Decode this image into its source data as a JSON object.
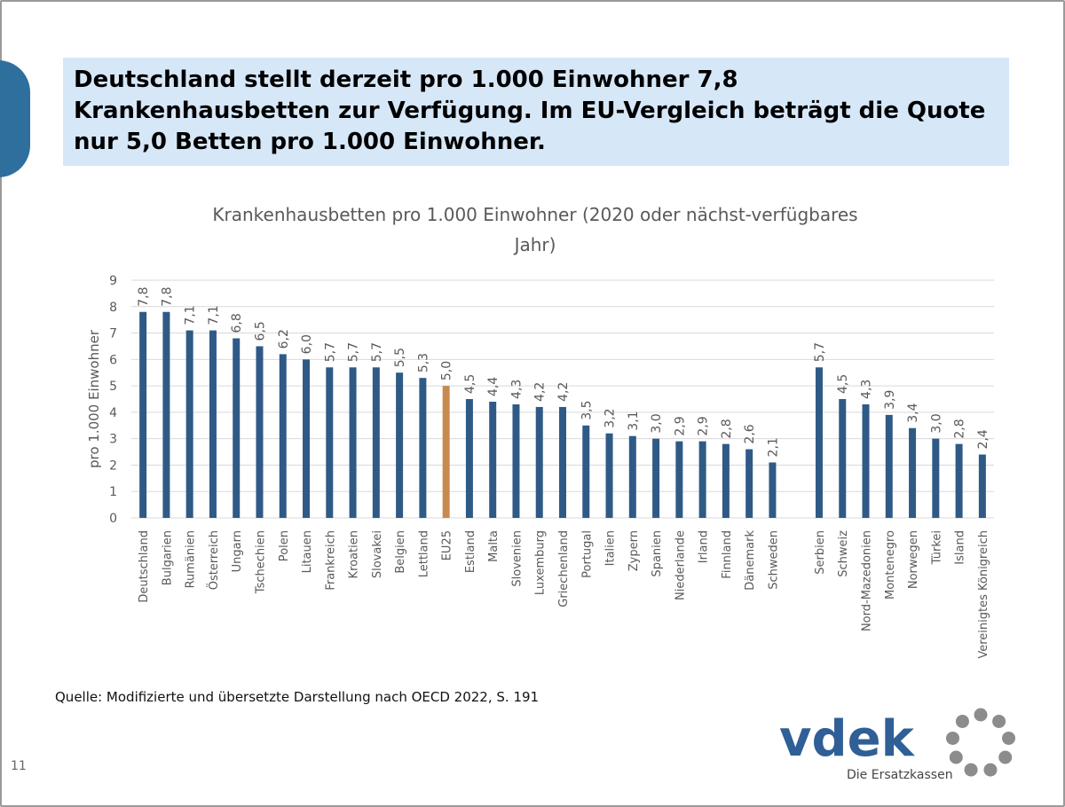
{
  "headline": {
    "lines": [
      "Deutschland stellt derzeit pro 1.000 Einwohner 7,8",
      "Krankenhausbetten zur Verfügung. Im EU-Vergleich beträgt die Quote",
      "nur 5,0 Betten pro 1.000 Einwohner."
    ]
  },
  "chart_data": {
    "type": "bar",
    "title": "Krankenhausbetten pro 1.000 Einwohner (2020 oder nächst-verfügbares Jahr)",
    "title_lines": [
      "Krankenhausbetten pro 1.000 Einwohner (2020 oder nächst-verfügbares",
      "Jahr)"
    ],
    "ylabel": "pro 1.000 Einwohner",
    "xlabel": "",
    "ylim": [
      0,
      9
    ],
    "yticks": [
      0,
      1,
      2,
      3,
      4,
      5,
      6,
      7,
      8,
      9
    ],
    "grid": true,
    "categories": [
      "Deutschland",
      "Bulgarien",
      "Rumänien",
      "Österreich",
      "Ungarn",
      "Tschechien",
      "Polen",
      "Litauen",
      "Frankreich",
      "Kroatien",
      "Slovakei",
      "Belgien",
      "Lettland",
      "EU25",
      "Estland",
      "Malta",
      "Slovenien",
      "Luxemburg",
      "Griechenland",
      "Portugal",
      "Italien",
      "Zypern",
      "Spanien",
      "Niederlande",
      "Irland",
      "Finnland",
      "Dänemark",
      "Schweden",
      "",
      "Serbien",
      "Schweiz",
      "Nord-Mazedonien",
      "Montenegro",
      "Norwegen",
      "Türkei",
      "Island",
      "Vereinigtes Königreich"
    ],
    "values": [
      7.8,
      7.8,
      7.1,
      7.1,
      6.8,
      6.5,
      6.2,
      6.0,
      5.7,
      5.7,
      5.7,
      5.5,
      5.3,
      5.0,
      4.5,
      4.4,
      4.3,
      4.2,
      4.2,
      3.5,
      3.2,
      3.1,
      3.0,
      2.9,
      2.9,
      2.8,
      2.6,
      2.1,
      null,
      5.7,
      4.5,
      4.3,
      3.9,
      3.4,
      3.0,
      2.8,
      2.4
    ],
    "value_labels": [
      "7,8",
      "7,8",
      "7,1",
      "7,1",
      "6,8",
      "6,5",
      "6,2",
      "6,0",
      "5,7",
      "5,7",
      "5,7",
      "5,5",
      "5,3",
      "5,0",
      "4,5",
      "4,4",
      "4,3",
      "4,2",
      "4,2",
      "3,5",
      "3,2",
      "3,1",
      "3,0",
      "2,9",
      "2,9",
      "2,8",
      "2,6",
      "2,1",
      "",
      "5,7",
      "4,5",
      "4,3",
      "3,9",
      "3,4",
      "3,0",
      "2,8",
      "2,4"
    ],
    "highlight_category": "EU25",
    "colors": {
      "bar": "#2f5a86",
      "highlight": "#c78a4f",
      "grid": "#d9d9d9",
      "text": "#595959"
    }
  },
  "source": "Quelle: Modifizierte und übersetzte Darstellung nach OECD 2022, S. 191",
  "page_number": "11",
  "logo": {
    "wordmark": "vdek",
    "tagline": "Die Ersatzkassen",
    "color": "#2f5f96",
    "ring_color": "#8c8c8c"
  }
}
